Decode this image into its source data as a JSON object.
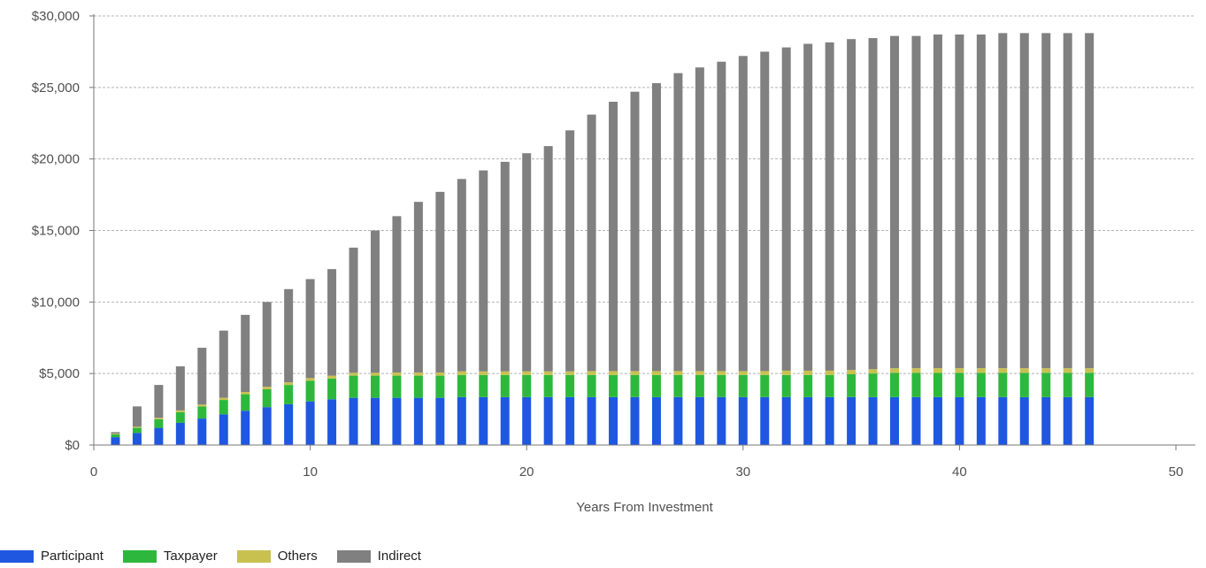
{
  "chart_data": {
    "type": "bar",
    "stacked": true,
    "xlabel": "Years From Investment",
    "ylabel": "",
    "xlim": [
      0,
      50
    ],
    "ylim": [
      0,
      30000
    ],
    "x_ticks": [
      0,
      10,
      20,
      30,
      40,
      50
    ],
    "y_ticks": [
      0,
      5000,
      10000,
      15000,
      20000,
      25000,
      30000
    ],
    "y_tick_labels": [
      "$0",
      "$5,000",
      "$10,000",
      "$15,000",
      "$20,000",
      "$25,000",
      "$30,000"
    ],
    "grid": "horizontal dashed",
    "legend_position": "bottom-left",
    "x": [
      1,
      2,
      3,
      4,
      5,
      6,
      7,
      8,
      9,
      10,
      11,
      12,
      13,
      14,
      15,
      16,
      17,
      18,
      19,
      20,
      21,
      22,
      23,
      24,
      25,
      26,
      27,
      28,
      29,
      30,
      31,
      32,
      33,
      34,
      35,
      36,
      37,
      38,
      39,
      40,
      41,
      42,
      43,
      44,
      45,
      46
    ],
    "series": [
      {
        "name": "Participant",
        "color": "#1f57e0",
        "values": [
          550,
          850,
          1200,
          1550,
          1850,
          2150,
          2400,
          2650,
          2850,
          3050,
          3200,
          3300,
          3300,
          3300,
          3300,
          3300,
          3350,
          3350,
          3350,
          3350,
          3350,
          3350,
          3350,
          3350,
          3350,
          3350,
          3350,
          3350,
          3350,
          3350,
          3350,
          3350,
          3350,
          3350,
          3350,
          3350,
          3350,
          3350,
          3350,
          3350,
          3350,
          3350,
          3350,
          3350,
          3350,
          3350
        ]
      },
      {
        "name": "Taxpayer",
        "color": "#2db83d",
        "values": [
          200,
          350,
          600,
          750,
          850,
          1000,
          1150,
          1250,
          1350,
          1450,
          1450,
          1550,
          1550,
          1550,
          1550,
          1550,
          1550,
          1550,
          1550,
          1550,
          1550,
          1550,
          1550,
          1550,
          1550,
          1550,
          1550,
          1550,
          1550,
          1550,
          1550,
          1550,
          1550,
          1550,
          1600,
          1650,
          1700,
          1700,
          1700,
          1700,
          1700,
          1700,
          1700,
          1700,
          1700,
          1700
        ]
      },
      {
        "name": "Others",
        "color": "#c8c150",
        "values": [
          50,
          80,
          100,
          120,
          130,
          150,
          160,
          170,
          180,
          180,
          200,
          200,
          200,
          220,
          220,
          220,
          250,
          250,
          250,
          250,
          250,
          250,
          270,
          270,
          270,
          270,
          270,
          270,
          270,
          270,
          270,
          300,
          300,
          300,
          300,
          300,
          320,
          320,
          320,
          320,
          320,
          320,
          320,
          320,
          320,
          320
        ]
      },
      {
        "name": "Indirect",
        "color": "#808080",
        "values": [
          100,
          1420,
          2300,
          3080,
          3970,
          4700,
          5390,
          5930,
          6520,
          6920,
          7450,
          8750,
          9950,
          10930,
          11930,
          12630,
          13450,
          14050,
          14650,
          15250,
          15750,
          16850,
          17930,
          18830,
          19530,
          20130,
          20830,
          21230,
          21630,
          22030,
          22330,
          22600,
          22850,
          22950,
          23130,
          23150,
          23230,
          23230,
          23330,
          23330,
          23330,
          23430,
          23430,
          23430,
          23430,
          23430
        ]
      }
    ]
  }
}
